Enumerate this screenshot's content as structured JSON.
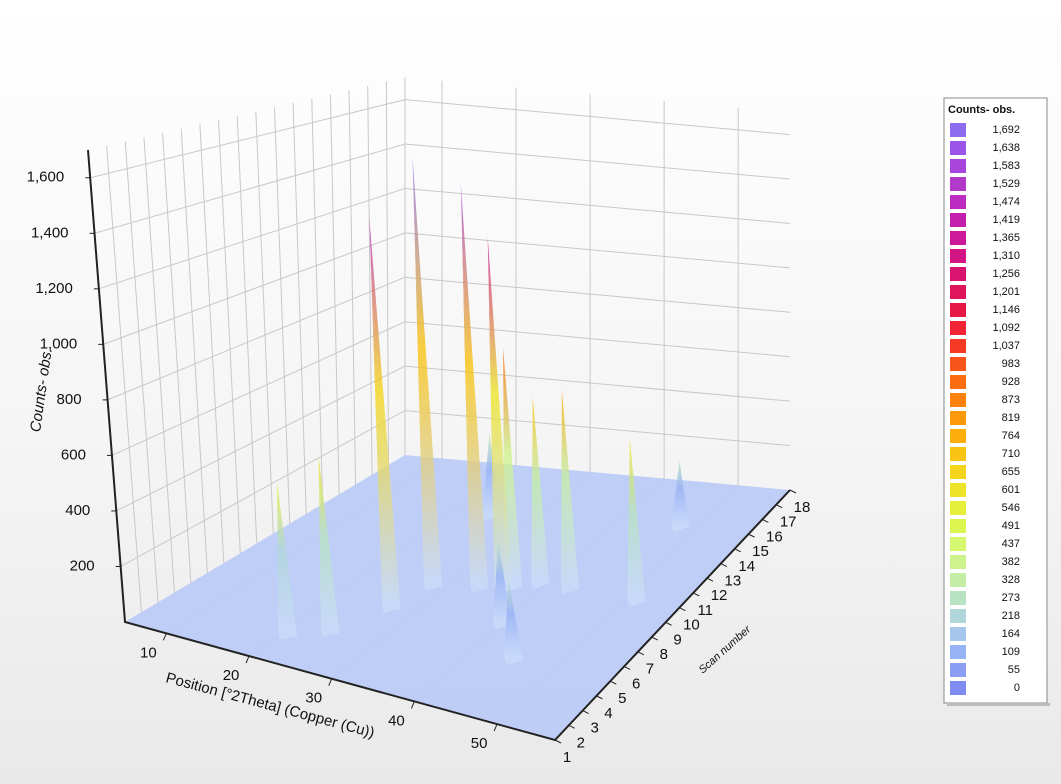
{
  "chart_data": {
    "type": "surface3d",
    "z_label": "Counts- obs.",
    "x_label": "Position [°2Theta] (Copper (Cu))",
    "y_label": "Scan number",
    "xlim": [
      5,
      57
    ],
    "xticks": [
      10,
      20,
      30,
      40,
      50
    ],
    "ylim": [
      1,
      18
    ],
    "yticks": [
      1,
      2,
      3,
      4,
      5,
      6,
      7,
      8,
      9,
      10,
      11,
      12,
      13,
      14,
      15,
      16,
      17,
      18
    ],
    "zlim": [
      0,
      1700
    ],
    "zticks": [
      200,
      400,
      600,
      800,
      {
        "value": 1000,
        "label": "1,000"
      },
      {
        "value": 1200,
        "label": "1,200"
      },
      {
        "value": 1400,
        "label": "1,400"
      },
      {
        "value": 1600,
        "label": "1,600"
      }
    ],
    "grid": true,
    "peaks": {
      "x": [
        48,
        25,
        40,
        45,
        27,
        28.4,
        51.5,
        43,
        39.2,
        36.7,
        36,
        33.3,
        24.2,
        20.7
      ],
      "scan": [
        15,
        14,
        7,
        5,
        6.5,
        8.5,
        10,
        10,
        10,
        9.5,
        9.2,
        9,
        4,
        3.1
      ],
      "counts": [
        280,
        350,
        320,
        300,
        1500,
        1692,
        650,
        800,
        750,
        950,
        1400,
        1600,
        650,
        560
      ]
    },
    "legend": {
      "title": "Counts- obs.",
      "levels": [
        {
          "value": 1692,
          "label": "1,692"
        },
        {
          "value": 1638,
          "label": "1,638"
        },
        {
          "value": 1583,
          "label": "1,583"
        },
        {
          "value": 1529,
          "label": "1,529"
        },
        {
          "value": 1474,
          "label": "1,474"
        },
        {
          "value": 1419,
          "label": "1,419"
        },
        {
          "value": 1365,
          "label": "1,365"
        },
        {
          "value": 1310,
          "label": "1,310"
        },
        {
          "value": 1256,
          "label": "1,256"
        },
        {
          "value": 1201,
          "label": "1,201"
        },
        {
          "value": 1146,
          "label": "1,146"
        },
        {
          "value": 1092,
          "label": "1,092"
        },
        {
          "value": 1037,
          "label": "1,037"
        },
        983,
        928,
        873,
        819,
        764,
        710,
        655,
        601,
        546,
        491,
        437,
        382,
        328,
        273,
        218,
        164,
        109,
        55,
        0
      ],
      "colors": [
        "#8d6cf0",
        "#9b55e8",
        "#a845dc",
        "#b23acb",
        "#bd2cc0",
        "#c41fac",
        "#cb1a9a",
        "#d21585",
        "#d81470",
        "#e0145a",
        "#e81846",
        "#f02435",
        "#f43a25",
        "#f8551a",
        "#fa6d10",
        "#fb830c",
        "#fb990a",
        "#fbae0c",
        "#f8c312",
        "#f3d61c",
        "#ede42a",
        "#e6ef3a",
        "#dcf550",
        "#d6f870",
        "#cef38c",
        "#c4eda6",
        "#b8e2c2",
        "#b0d6da",
        "#a6c6ee",
        "#98b2f6",
        "#8c9ef4",
        "#7f8cf2"
      ]
    }
  }
}
